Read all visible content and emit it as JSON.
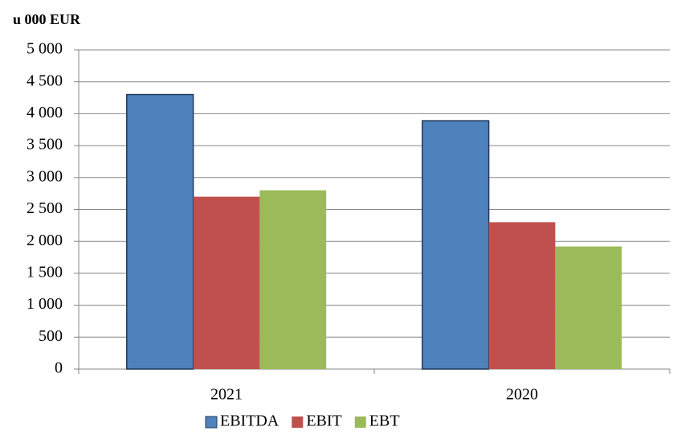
{
  "chart_data": {
    "type": "bar",
    "title": "u 000 EUR",
    "categories": [
      "2021",
      "2020"
    ],
    "series": [
      {
        "name": "EBITDA",
        "color": "#4f81bd",
        "values": [
          4300,
          3890
        ]
      },
      {
        "name": "EBIT",
        "color": "#c0504d",
        "values": [
          2700,
          2300
        ]
      },
      {
        "name": "EBT",
        "color": "#9bbb59",
        "values": [
          2800,
          1920
        ]
      }
    ],
    "ylim": [
      0,
      5000
    ],
    "yticks": [
      {
        "value": 0,
        "label": "0"
      },
      {
        "value": 500,
        "label": "500"
      },
      {
        "value": 1000,
        "label": "1 000"
      },
      {
        "value": 1500,
        "label": "1 500"
      },
      {
        "value": 2000,
        "label": "2 000"
      },
      {
        "value": 2500,
        "label": "2 500"
      },
      {
        "value": 3000,
        "label": "3 000"
      },
      {
        "value": 3500,
        "label": "3 500"
      },
      {
        "value": 4000,
        "label": "4 000"
      },
      {
        "value": 4500,
        "label": "4 500"
      },
      {
        "value": 5000,
        "label": "5 000"
      }
    ],
    "grid": true,
    "legend": "bottom"
  }
}
